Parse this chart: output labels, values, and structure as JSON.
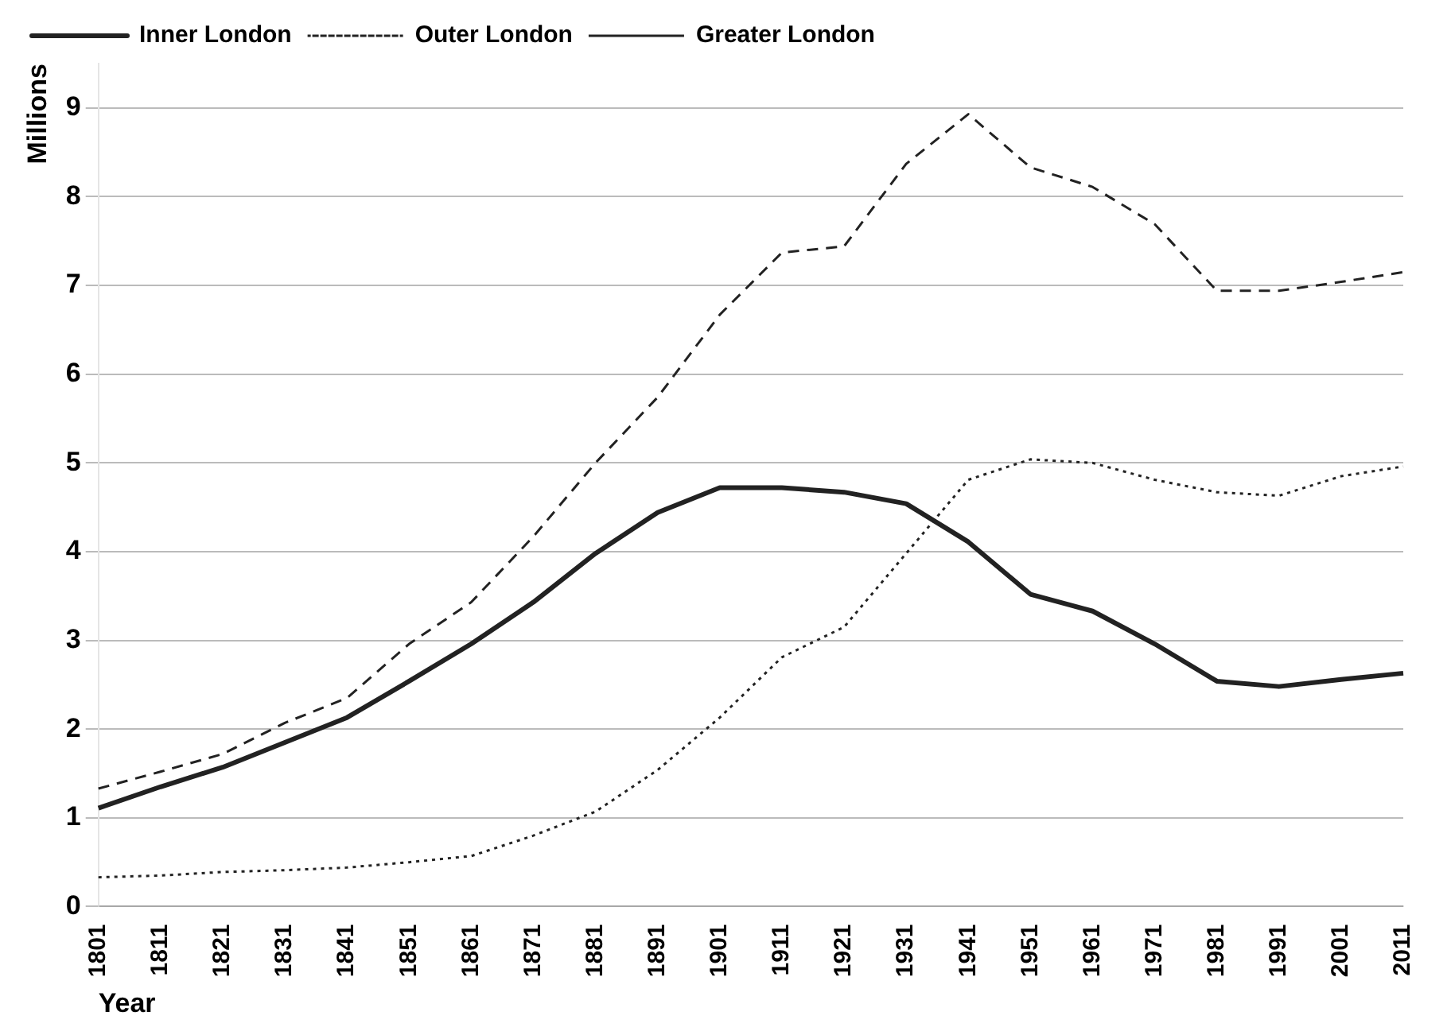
{
  "chart_data": {
    "type": "line",
    "xlabel": "Year",
    "ylabel": "Millions",
    "categories": [
      "1801",
      "1811",
      "1821",
      "1831",
      "1841",
      "1851",
      "1861",
      "1871",
      "1881",
      "1891",
      "1901",
      "1911",
      "1921",
      "1931",
      "1941",
      "1951",
      "1961",
      "1971",
      "1981",
      "1991",
      "2001",
      "2011"
    ],
    "series": [
      {
        "name": "Inner London",
        "color": "#222222",
        "line_style": "solid",
        "values": [
          1.11,
          1.35,
          1.57,
          1.85,
          2.13,
          2.54,
          2.96,
          3.43,
          3.98,
          4.44,
          4.72,
          4.72,
          4.67,
          4.54,
          4.11,
          3.52,
          3.33,
          2.96,
          2.54,
          2.48,
          2.56,
          2.63
        ]
      },
      {
        "name": "Outer London",
        "color": "#222222",
        "line_style": "dotted",
        "values": [
          0.33,
          0.35,
          0.39,
          0.41,
          0.44,
          0.5,
          0.57,
          0.8,
          1.07,
          1.54,
          2.13,
          2.81,
          3.15,
          3.98,
          4.81,
          5.04,
          5.0,
          4.81,
          4.67,
          4.63,
          4.85,
          4.96
        ]
      },
      {
        "name": "Greater London",
        "color": "#222222",
        "line_style": "dashed",
        "values": [
          1.33,
          1.52,
          1.72,
          2.07,
          2.35,
          2.96,
          3.43,
          4.17,
          5.0,
          5.74,
          6.67,
          7.37,
          7.44,
          8.37,
          8.93,
          8.33,
          8.11,
          7.69,
          6.94,
          6.94,
          7.04,
          7.15
        ]
      }
    ],
    "ylim": [
      0,
      9.5
    ],
    "yticks": [
      0,
      1,
      2,
      3,
      4,
      5,
      6,
      7,
      8,
      9
    ],
    "grid": "y",
    "legend": "top left",
    "marker": "none"
  }
}
